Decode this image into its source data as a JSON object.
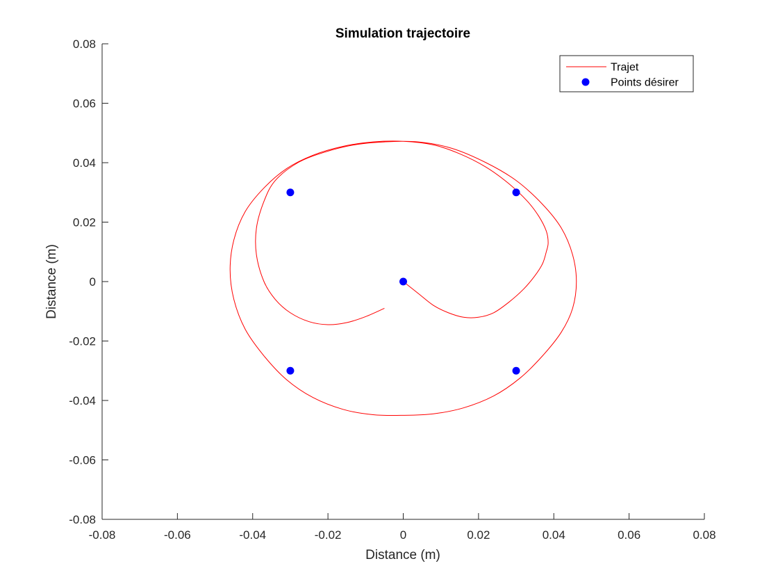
{
  "chart_data": {
    "type": "line",
    "title": "Simulation trajectoire",
    "xlabel": "Distance (m)",
    "ylabel": "Distance (m)",
    "xlim": [
      -0.08,
      0.08
    ],
    "ylim": [
      -0.08,
      0.08
    ],
    "xticks": [
      "-0.08",
      "-0.06",
      "-0.04",
      "-0.02",
      "0",
      "0.02",
      "0.04",
      "0.06",
      "0.08"
    ],
    "yticks": [
      "-0.08",
      "-0.06",
      "-0.04",
      "-0.02",
      "0",
      "0.02",
      "0.04",
      "0.06",
      "0.08"
    ],
    "grid": false,
    "legend_position": "top-right",
    "series": [
      {
        "name": "Trajet",
        "style": "line",
        "color": "#ff0000",
        "x": [
          0.0,
          0.004,
          0.008,
          0.012,
          0.016,
          0.02,
          0.024,
          0.028,
          0.032,
          0.035,
          0.037,
          0.038,
          0.0385,
          0.038,
          0.036,
          0.033,
          0.028,
          0.022,
          0.015,
          0.008,
          0.0,
          -0.008,
          -0.016,
          -0.024,
          -0.031,
          -0.037,
          -0.042,
          -0.045,
          -0.046,
          -0.045,
          -0.042,
          -0.037,
          -0.031,
          -0.024,
          -0.016,
          -0.008,
          0.0,
          0.008,
          0.016,
          0.024,
          0.031,
          0.037,
          0.042,
          0.045,
          0.046,
          0.045,
          0.042,
          0.037,
          0.03,
          0.022,
          0.013,
          0.004,
          -0.005,
          -0.013,
          -0.021,
          -0.028,
          -0.034,
          -0.037,
          -0.039,
          -0.039,
          -0.037,
          -0.034,
          -0.03,
          -0.025,
          -0.02,
          -0.015,
          -0.01,
          -0.005
        ],
        "y": [
          0.0,
          -0.004,
          -0.008,
          -0.0105,
          -0.012,
          -0.012,
          -0.0105,
          -0.007,
          -0.0025,
          0.002,
          0.006,
          0.01,
          0.013,
          0.017,
          0.022,
          0.027,
          0.033,
          0.0385,
          0.043,
          0.046,
          0.0472,
          0.047,
          0.0455,
          0.0425,
          0.038,
          0.0315,
          0.0235,
          0.014,
          0.004,
          -0.006,
          -0.016,
          -0.025,
          -0.033,
          -0.039,
          -0.043,
          -0.0448,
          -0.045,
          -0.0445,
          -0.0425,
          -0.0385,
          -0.0325,
          -0.025,
          -0.017,
          -0.009,
          0.0,
          0.009,
          0.018,
          0.026,
          0.034,
          0.04,
          0.0448,
          0.047,
          0.047,
          0.046,
          0.0435,
          0.04,
          0.034,
          0.027,
          0.018,
          0.009,
          0.0,
          -0.006,
          -0.0105,
          -0.0135,
          -0.0145,
          -0.0138,
          -0.0118,
          -0.009
        ]
      },
      {
        "name": "Points désirer",
        "style": "markers",
        "color": "#0000ff",
        "x": [
          -0.03,
          0.03,
          0.0,
          -0.03,
          0.03
        ],
        "y": [
          0.03,
          0.03,
          0.0,
          -0.03,
          -0.03
        ]
      }
    ]
  }
}
